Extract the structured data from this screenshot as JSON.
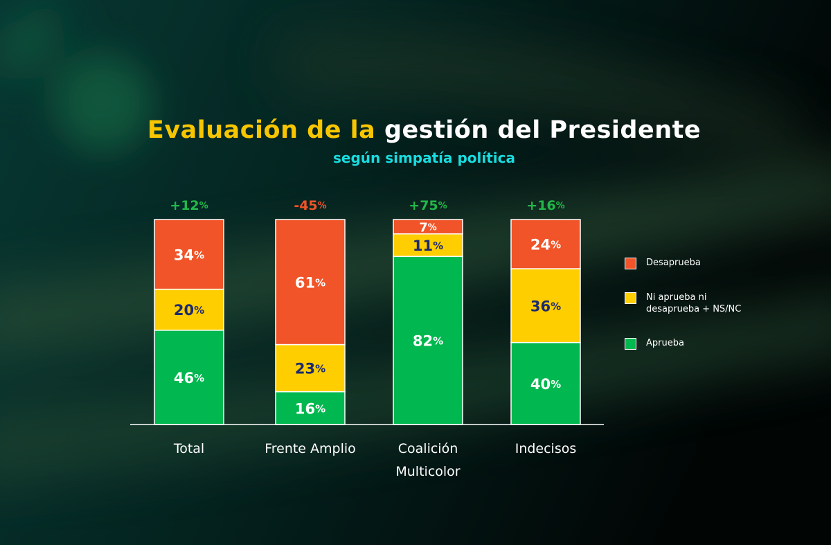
{
  "title_part1": "Evaluación de la",
  "title_part2": "gestión del Presidente",
  "subtitle": "según simpatía política",
  "colors": {
    "desaprueba": "#f05428",
    "neutral": "#fece00",
    "aprueba": "#00b84f",
    "net_positive": "#22b84a",
    "net_negative": "#f05428",
    "label_dark": "#1d2a6e",
    "label_light": "#ffffff"
  },
  "legend": [
    {
      "key": "desaprueba",
      "label": "Desaprueba"
    },
    {
      "key": "neutral",
      "label": "Ni aprueba ni desaprueba + NS/NC"
    },
    {
      "key": "aprueba",
      "label": "Aprueba"
    }
  ],
  "chart_data": {
    "type": "bar",
    "stacked": true,
    "categories": [
      [
        "Total"
      ],
      [
        "Frente Amplio"
      ],
      [
        "Coalición",
        "Multicolor"
      ],
      [
        "Indecisos"
      ]
    ],
    "series": [
      {
        "name": "Aprueba",
        "key": "aprueba",
        "values": [
          46,
          16,
          82,
          40
        ],
        "labels": [
          "46%",
          "16%",
          "82%",
          "40%"
        ]
      },
      {
        "name": "Ni aprueba ni desaprueba + NS/NC",
        "key": "neutral",
        "values": [
          20,
          23,
          11,
          36
        ],
        "labels": [
          "20%",
          "23%",
          "11%",
          "36%"
        ]
      },
      {
        "name": "Desaprueba",
        "key": "desaprueba",
        "values": [
          34,
          61,
          7,
          24
        ],
        "labels": [
          "34%",
          "61%",
          "7%",
          "24%"
        ]
      }
    ],
    "net_labels": [
      "+12%",
      "-45%",
      "+75%",
      "+16%"
    ],
    "net_values": [
      12,
      -45,
      75,
      16
    ],
    "ylim": [
      0,
      100
    ]
  }
}
